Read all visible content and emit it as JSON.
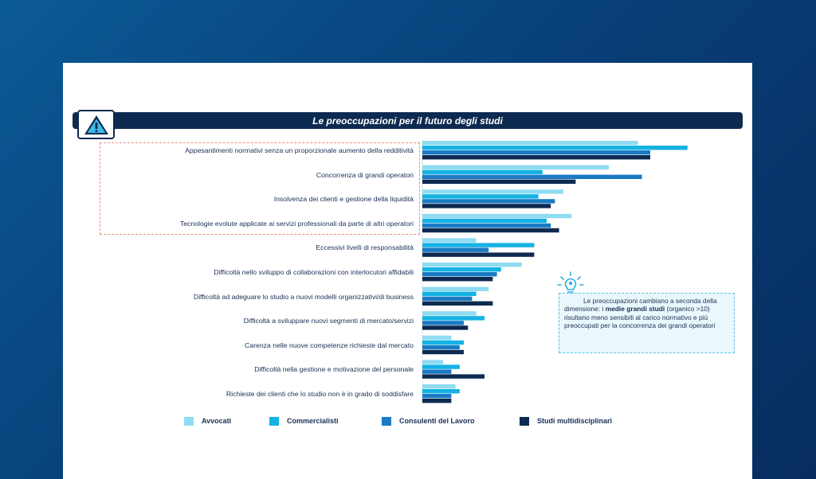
{
  "title": "Le preoccupazioni per il futuro degli studi",
  "note": {
    "text_1": "Le preoccupazioni cambiano a seconda della dimensione: i ",
    "bold": "medie grandi studi",
    "text_2": " (organico >10) risultano meno sensibili al carico normativo e più preoccupati per la concorrenza dei grandi operatori"
  },
  "colors": {
    "background": "#0a4a85",
    "title_bar": "#0d2a50",
    "highlight_border": "#ef8e7a",
    "note_border": "#5fc3e0"
  },
  "icons": {
    "warning": "warning-triangle-icon",
    "idea": "lightbulb-icon"
  },
  "chart_data": {
    "type": "bar",
    "orientation": "horizontal",
    "title": "Le preoccupazioni per il futuro degli studi",
    "categories": [
      "Appesantimenti normativi senza un proporzionale aumento della redditività",
      "Concorrenza di grandi operatori",
      "Insolvenza dei clienti e gestione della liquidità",
      "Tecnologie evolute applicate ai servizi professionali da parte di altri operatori",
      "Eccessivi livelli di responsabilità",
      "Difficoltà nello sviluppo di collaborazioni con interlocutori affidabili",
      "Difficoltà ad adeguare lo studio a nuovi modelli organizzativi/di business",
      "Difficoltà a sviluppare nuovi segmenti di mercato/servizi",
      "Carenza nelle nuove competenze richieste dal mercato",
      "Difficoltà nella gestione e motivazione del personale",
      "Richieste dei clienti che lo studio non è in grado di soddisfare"
    ],
    "series": [
      {
        "name": "Avvocati",
        "color": "#8fdcf2",
        "values": [
          52,
          45,
          34,
          36,
          13,
          24,
          16,
          13,
          7,
          5,
          8
        ]
      },
      {
        "name": "Commercialisti",
        "color": "#15b2e3",
        "values": [
          64,
          29,
          28,
          30,
          27,
          19,
          13,
          15,
          10,
          9,
          9
        ]
      },
      {
        "name": "Consulenti del Lavoro",
        "color": "#1a7ac4",
        "values": [
          55,
          53,
          32,
          31,
          16,
          18,
          12,
          10,
          9,
          7,
          7
        ]
      },
      {
        "name": "Studi multidisciplinari",
        "color": "#0d2a50",
        "values": [
          55,
          37,
          31,
          33,
          27,
          17,
          17,
          11,
          10,
          15,
          7
        ]
      }
    ],
    "highlighted_categories": [
      0,
      1,
      2,
      3
    ],
    "legend_position": "bottom",
    "grid": false
  }
}
